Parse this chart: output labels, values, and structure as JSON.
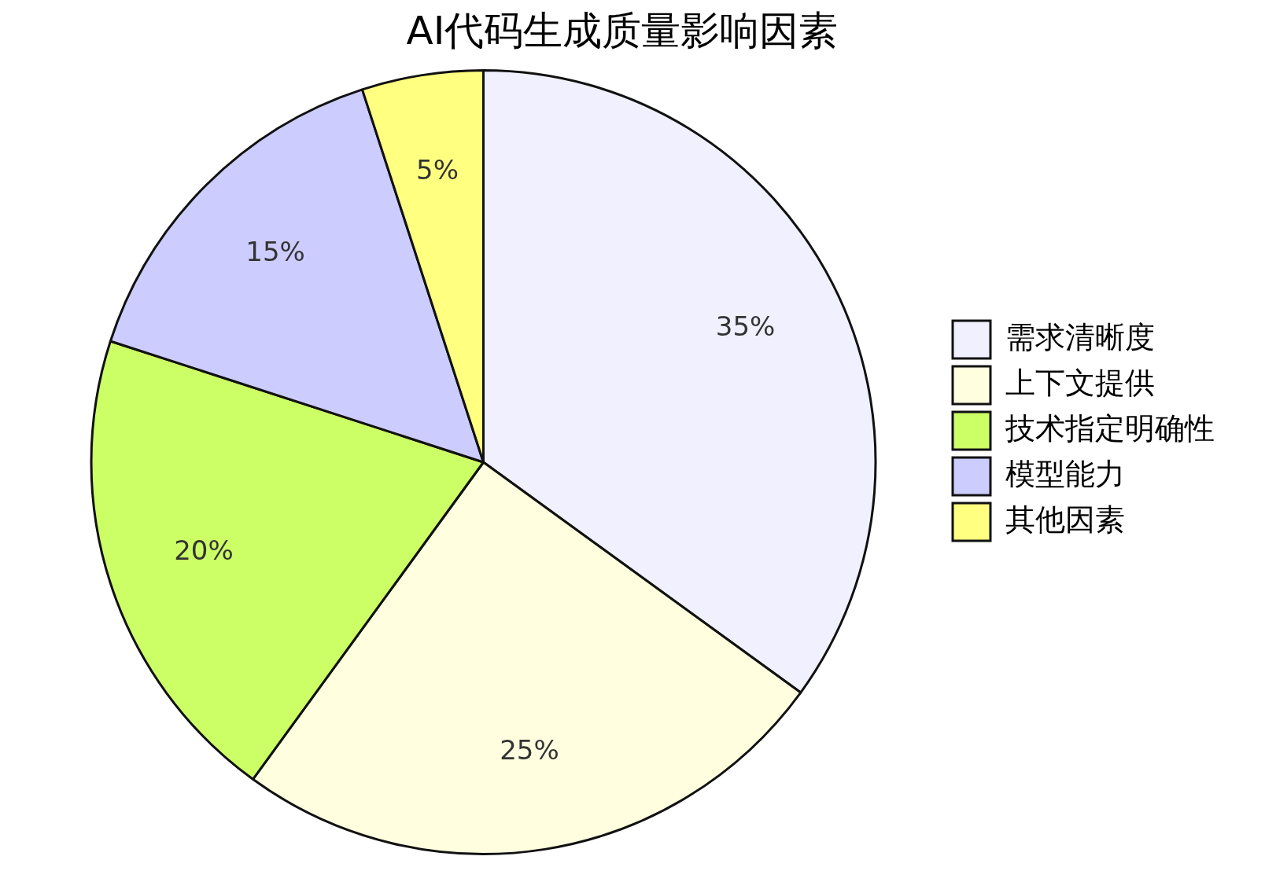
{
  "chart_data": {
    "type": "pie",
    "title": "AI代码生成质量影响因素",
    "categories": [
      "需求清晰度",
      "上下文提供",
      "技术指定明确性",
      "模型能力",
      "其他因素"
    ],
    "values": [
      35,
      25,
      20,
      15,
      5
    ],
    "value_labels": [
      "35%",
      "25%",
      "20%",
      "15%",
      "5%"
    ],
    "colors": [
      "#f0f0ff",
      "#ffffe0",
      "#ccff66",
      "#ccccff",
      "#ffff80"
    ],
    "legend": "right"
  }
}
